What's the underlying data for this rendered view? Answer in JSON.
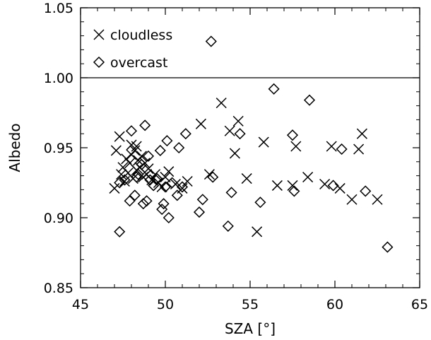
{
  "chart_data": {
    "type": "scatter",
    "xlabel": "SZA [°]",
    "ylabel": "Albedo",
    "xlim": [
      45,
      65
    ],
    "ylim": [
      0.85,
      1.05
    ],
    "xticks": [
      "45",
      "50",
      "55",
      "60",
      "65"
    ],
    "yticks": [
      "0.85",
      "0.90",
      "0.95",
      "1.00",
      "1.05"
    ],
    "reference_line": {
      "y": 1.0
    },
    "legend_position": "top-left",
    "grid": false,
    "series": [
      {
        "name": "cloudless",
        "marker": "x",
        "points": [
          [
            47.0,
            0.921
          ],
          [
            47.1,
            0.948
          ],
          [
            47.3,
            0.958
          ],
          [
            47.4,
            0.931
          ],
          [
            47.5,
            0.936
          ],
          [
            47.6,
            0.926
          ],
          [
            47.7,
            0.942
          ],
          [
            47.8,
            0.932
          ],
          [
            47.9,
            0.939
          ],
          [
            48.0,
            0.945
          ],
          [
            48.0,
            0.952
          ],
          [
            48.1,
            0.928
          ],
          [
            48.2,
            0.948
          ],
          [
            48.3,
            0.934
          ],
          [
            48.3,
            0.951
          ],
          [
            48.4,
            0.941
          ],
          [
            48.5,
            0.936
          ],
          [
            48.6,
            0.944
          ],
          [
            48.7,
            0.929
          ],
          [
            48.8,
            0.939
          ],
          [
            48.9,
            0.931
          ],
          [
            49.0,
            0.935
          ],
          [
            49.2,
            0.927
          ],
          [
            49.4,
            0.931
          ],
          [
            49.6,
            0.925
          ],
          [
            49.8,
            0.922
          ],
          [
            50.0,
            0.929
          ],
          [
            50.2,
            0.933
          ],
          [
            50.6,
            0.924
          ],
          [
            51.0,
            0.921
          ],
          [
            51.3,
            0.926
          ],
          [
            52.1,
            0.967
          ],
          [
            52.6,
            0.931
          ],
          [
            53.3,
            0.982
          ],
          [
            53.8,
            0.962
          ],
          [
            54.1,
            0.946
          ],
          [
            54.3,
            0.969
          ],
          [
            54.8,
            0.928
          ],
          [
            55.4,
            0.89
          ],
          [
            55.8,
            0.954
          ],
          [
            56.6,
            0.923
          ],
          [
            57.5,
            0.923
          ],
          [
            57.7,
            0.951
          ],
          [
            58.4,
            0.929
          ],
          [
            59.4,
            0.924
          ],
          [
            59.8,
            0.951
          ],
          [
            60.3,
            0.921
          ],
          [
            61.0,
            0.913
          ],
          [
            61.4,
            0.949
          ],
          [
            61.6,
            0.96
          ],
          [
            62.5,
            0.913
          ]
        ]
      },
      {
        "name": "overcast",
        "marker": "diamond",
        "points": [
          [
            47.3,
            0.89
          ],
          [
            47.3,
            0.925
          ],
          [
            47.6,
            0.927
          ],
          [
            47.9,
            0.912
          ],
          [
            48.0,
            0.962
          ],
          [
            48.2,
            0.916
          ],
          [
            48.3,
            0.929
          ],
          [
            48.4,
            0.931
          ],
          [
            48.6,
            0.938
          ],
          [
            48.7,
            0.91
          ],
          [
            48.8,
            0.966
          ],
          [
            48.9,
            0.912
          ],
          [
            49.0,
            0.944
          ],
          [
            49.1,
            0.927
          ],
          [
            49.3,
            0.923
          ],
          [
            49.5,
            0.928
          ],
          [
            49.7,
            0.948
          ],
          [
            49.8,
            0.906
          ],
          [
            49.9,
            0.91
          ],
          [
            50.0,
            0.922
          ],
          [
            50.1,
            0.955
          ],
          [
            50.2,
            0.9
          ],
          [
            50.4,
            0.925
          ],
          [
            50.7,
            0.916
          ],
          [
            50.8,
            0.95
          ],
          [
            51.0,
            0.922
          ],
          [
            51.2,
            0.96
          ],
          [
            52.0,
            0.904
          ],
          [
            52.2,
            0.913
          ],
          [
            52.7,
            1.026
          ],
          [
            52.8,
            0.929
          ],
          [
            53.7,
            0.894
          ],
          [
            53.9,
            0.918
          ],
          [
            54.4,
            0.96
          ],
          [
            55.6,
            0.911
          ],
          [
            56.4,
            0.992
          ],
          [
            57.5,
            0.959
          ],
          [
            57.6,
            0.919
          ],
          [
            58.5,
            0.984
          ],
          [
            59.9,
            0.923
          ],
          [
            60.4,
            0.949
          ],
          [
            61.8,
            0.919
          ],
          [
            63.1,
            0.879
          ]
        ]
      }
    ]
  }
}
